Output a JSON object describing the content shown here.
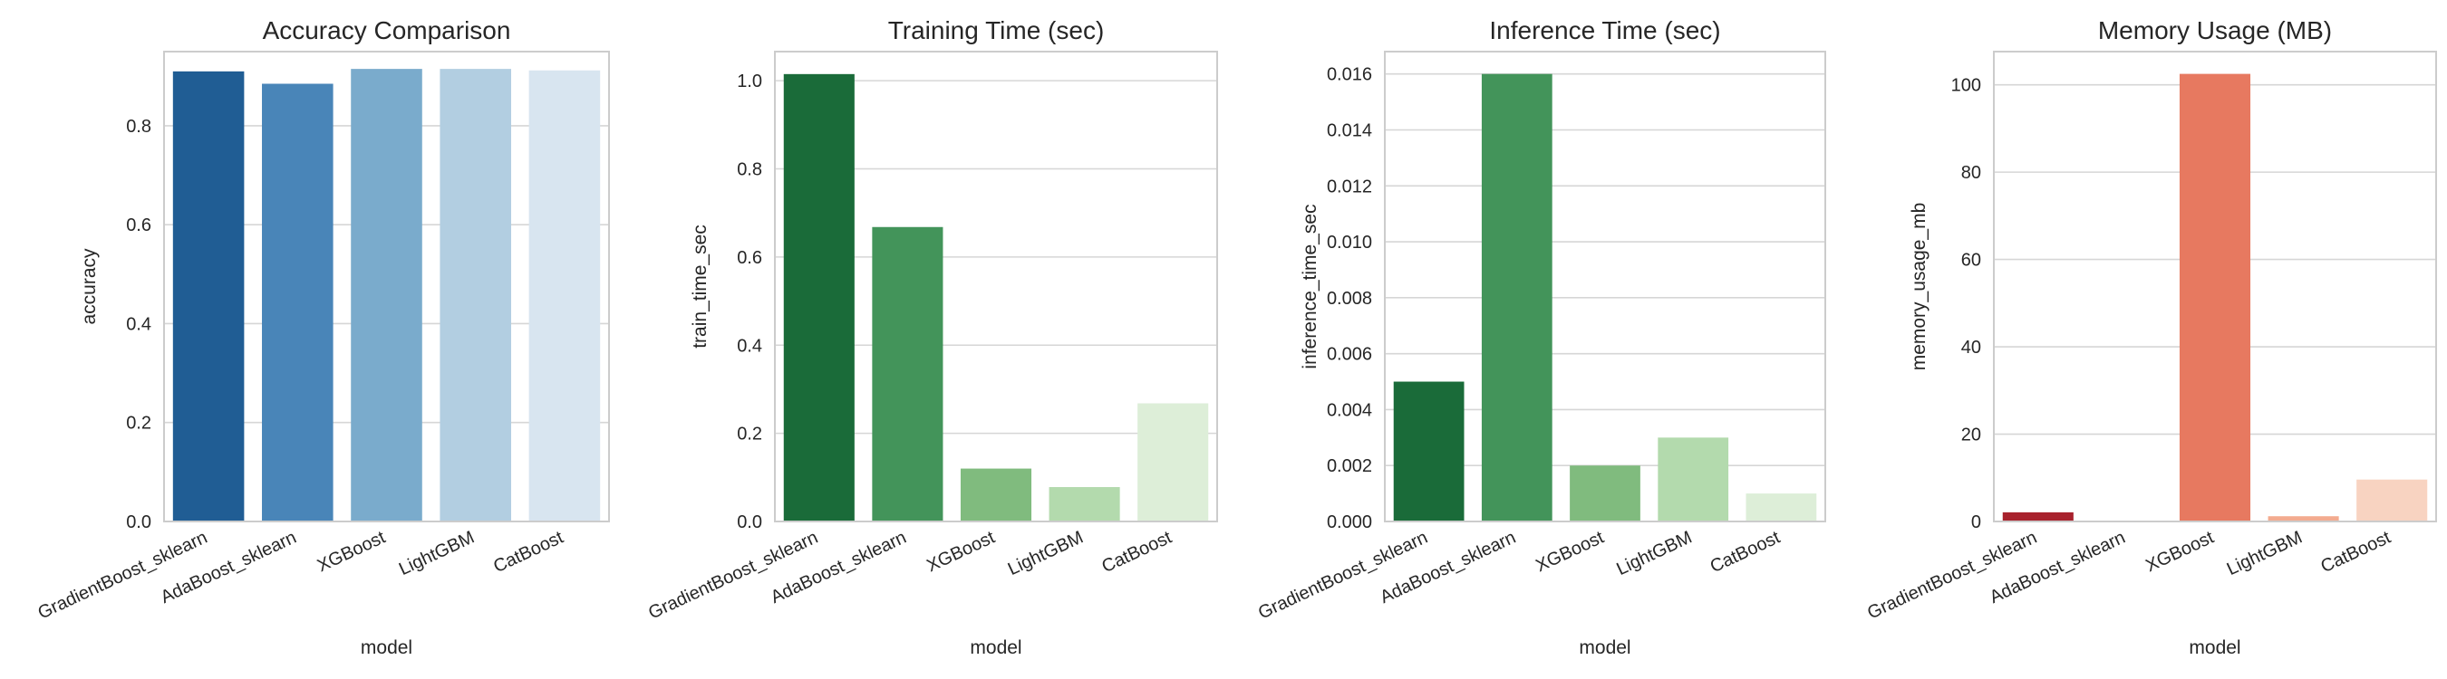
{
  "chart_data": [
    {
      "type": "bar",
      "title": "Accuracy Comparison",
      "xlabel": "model",
      "ylabel": "accuracy",
      "categories": [
        "GradientBoost_sklearn",
        "AdaBoost_sklearn",
        "XGBoost",
        "LightGBM",
        "CatBoost"
      ],
      "values": [
        0.91,
        0.885,
        0.915,
        0.915,
        0.912
      ],
      "ylim": [
        0,
        0.95
      ],
      "yticks": [
        "0.0",
        "0.2",
        "0.4",
        "0.6",
        "0.8"
      ],
      "colors": [
        "#205d94",
        "#4985b8",
        "#7aabcc",
        "#b2cee1",
        "#d8e5f0"
      ],
      "grid": true
    },
    {
      "type": "bar",
      "title": "Training Time (sec)",
      "xlabel": "model",
      "ylabel": "train_time_sec",
      "categories": [
        "GradientBoost_sklearn",
        "AdaBoost_sklearn",
        "XGBoost",
        "LightGBM",
        "CatBoost"
      ],
      "values": [
        1.015,
        0.668,
        0.12,
        0.078,
        0.268
      ],
      "ylim": [
        0,
        1.066
      ],
      "yticks": [
        "0.0",
        "0.2",
        "0.4",
        "0.6",
        "0.8",
        "1.0"
      ],
      "colors": [
        "#1a6b39",
        "#43945a",
        "#80bb7e",
        "#b3daad",
        "#ddeed8"
      ],
      "grid": true
    },
    {
      "type": "bar",
      "title": "Inference Time (sec)",
      "xlabel": "model",
      "ylabel": "inference_time_sec",
      "categories": [
        "GradientBoost_sklearn",
        "AdaBoost_sklearn",
        "XGBoost",
        "LightGBM",
        "CatBoost"
      ],
      "values": [
        0.005,
        0.016,
        0.002,
        0.003,
        0.001
      ],
      "ylim": [
        0,
        0.0168
      ],
      "yticks": [
        "0.000",
        "0.002",
        "0.004",
        "0.006",
        "0.008",
        "0.010",
        "0.012",
        "0.014",
        "0.016"
      ],
      "colors": [
        "#1a6b39",
        "#43945a",
        "#80bb7e",
        "#b3daad",
        "#ddeed8"
      ],
      "grid": true
    },
    {
      "type": "bar",
      "title": "Memory Usage (MB)",
      "xlabel": "model",
      "ylabel": "memory_usage_mb",
      "categories": [
        "GradientBoost_sklearn",
        "AdaBoost_sklearn",
        "XGBoost",
        "LightGBM",
        "CatBoost"
      ],
      "values": [
        2.1,
        0,
        102.5,
        1.2,
        9.6
      ],
      "ylim": [
        0,
        107.6
      ],
      "yticks": [
        "0",
        "20",
        "40",
        "60",
        "80",
        "100"
      ],
      "colors": [
        "#a8222d",
        "#de4c3b",
        "#e77960",
        "#f3ab8f",
        "#f8d3c1"
      ],
      "grid": true
    }
  ]
}
